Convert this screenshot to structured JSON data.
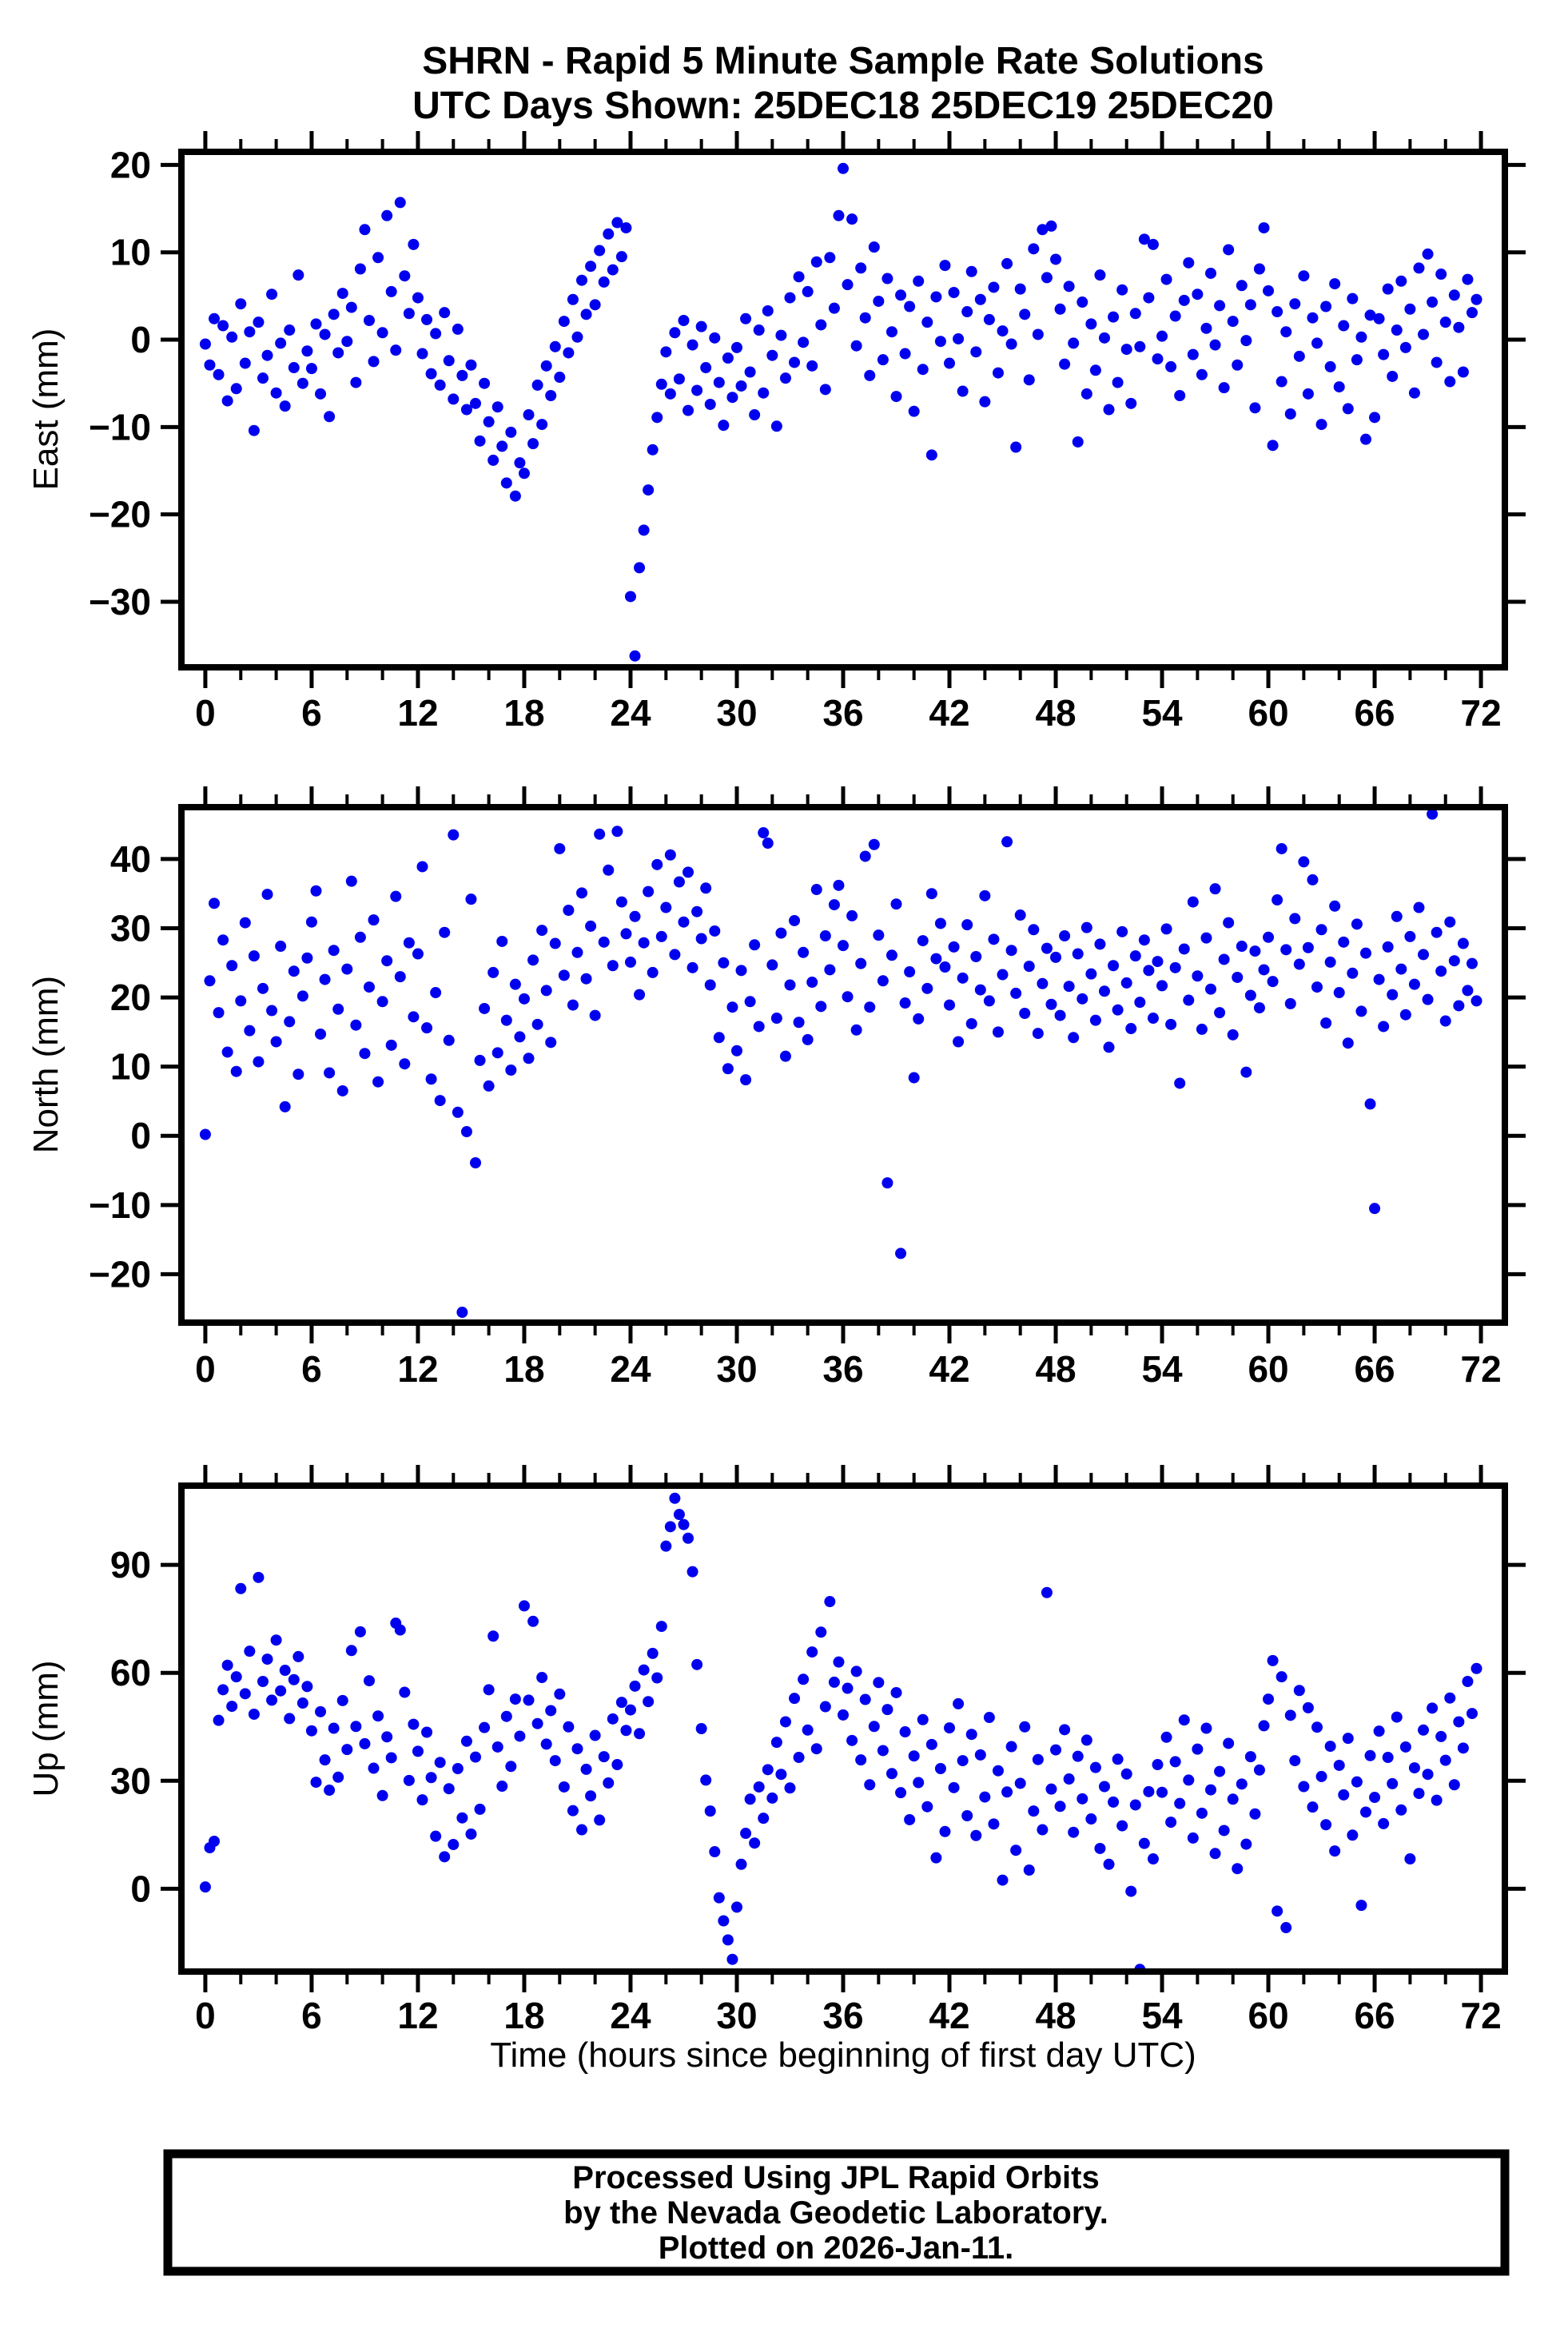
{
  "title": {
    "line1": "SHRN - Rapid 5 Minute Sample Rate Solutions",
    "line2": "UTC Days Shown:  25DEC18 25DEC19 25DEC20"
  },
  "footer": {
    "line1": "Processed Using JPL Rapid Orbits",
    "line2": "by the Nevada Geodetic Laboratory.",
    "line3": "Plotted on 2026-Jan-11."
  },
  "colors": {
    "dot": "#0000EE",
    "frame": "#000000"
  },
  "x_axis": {
    "label": "Time (hours since beginning of first day UTC)",
    "ticks": [
      0,
      6,
      12,
      18,
      24,
      30,
      36,
      42,
      48,
      54,
      60,
      66,
      72
    ],
    "minor_step": 2,
    "xlim": [
      -1.35,
      73.35
    ]
  },
  "chart_data": [
    {
      "type": "scatter",
      "id": "east",
      "name": "East",
      "ylabel": "East (mm)",
      "ylim": [
        -37.5,
        21.5
      ],
      "yticks": [
        20,
        10,
        0,
        -10,
        -20,
        -30
      ],
      "grid": false,
      "legend": "none",
      "marker": "circle",
      "t0": 0,
      "dt": 0.25,
      "y": [
        -0.5,
        -2.9,
        2.4,
        -4.0,
        1.6,
        -7.0,
        0.3,
        -5.6,
        4.1,
        -2.7,
        0.9,
        -10.4,
        2.0,
        -4.4,
        -1.8,
        5.2,
        -6.1,
        -0.4,
        -7.6,
        1.1,
        -3.2,
        7.4,
        -5.0,
        -1.3,
        -3.3,
        1.8,
        -6.2,
        0.6,
        -8.8,
        2.9,
        -1.5,
        5.3,
        -0.2,
        3.7,
        -4.9,
        8.1,
        12.6,
        2.2,
        -2.5,
        9.4,
        0.8,
        14.2,
        5.5,
        -1.2,
        15.7,
        7.3,
        3.0,
        10.9,
        4.8,
        -1.6,
        2.3,
        -3.9,
        0.7,
        -5.2,
        3.1,
        -2.4,
        -6.8,
        1.2,
        -4.1,
        -8.0,
        -2.9,
        -7.3,
        -11.6,
        -5.0,
        -9.4,
        -13.8,
        -7.7,
        -12.2,
        -16.4,
        -10.6,
        -17.9,
        -14.1,
        -15.3,
        -8.6,
        -11.9,
        -5.2,
        -9.7,
        -3.0,
        -6.4,
        -0.8,
        -4.3,
        2.1,
        -1.5,
        4.6,
        0.3,
        6.8,
        2.9,
        8.4,
        4.0,
        10.2,
        6.6,
        12.1,
        8.0,
        13.4,
        9.5,
        12.8,
        -29.4,
        -36.2,
        -26.1,
        -21.8,
        -17.2,
        -12.6,
        -8.9,
        -5.1,
        -1.4,
        -6.2,
        0.8,
        -4.5,
        2.2,
        -8.1,
        -0.6,
        -5.8,
        1.5,
        -3.2,
        -7.4,
        0.2,
        -4.9,
        -9.8,
        -2.1,
        -6.6,
        -0.9,
        -5.3,
        2.4,
        -3.7,
        -8.6,
        1.1,
        -6.1,
        3.3,
        -1.8,
        -9.9,
        0.5,
        -4.4,
        4.8,
        -2.6,
        7.2,
        -0.3,
        5.5,
        -3.0,
        8.9,
        1.7,
        -5.7,
        9.4,
        3.6,
        14.2,
        19.6,
        6.3,
        13.8,
        -0.7,
        8.2,
        2.5,
        -4.1,
        10.6,
        4.4,
        -2.3,
        7.0,
        0.9,
        -6.5,
        5.1,
        -1.6,
        3.8,
        -8.2,
        6.7,
        -3.4,
        2.0,
        -13.2,
        4.9,
        -0.2,
        8.5,
        -2.7,
        5.4,
        0.1,
        -5.9,
        3.2,
        7.8,
        -1.4,
        4.6,
        -7.1,
        2.3,
        6.0,
        -3.8,
        1.0,
        8.7,
        -0.5,
        -12.3,
        5.8,
        2.9,
        -4.6,
        10.4,
        0.6,
        12.6,
        7.1,
        13.0,
        9.2,
        3.5,
        -2.8,
        6.1,
        -0.4,
        -11.7,
        4.3,
        -6.2,
        1.8,
        -3.5,
        7.4,
        0.2,
        -8.0,
        2.6,
        -4.9,
        5.7,
        -1.1,
        -7.3,
        3.0,
        -0.8,
        11.5,
        4.8,
        10.9,
        -2.2,
        0.4,
        6.9,
        -3.1,
        2.7,
        -6.4,
        4.5,
        8.8,
        -1.7,
        5.2,
        -4.0,
        1.3,
        7.6,
        -0.6,
        3.9,
        -5.5,
        10.3,
        2.1,
        -2.9,
        6.2,
        -0.1,
        4.0,
        -7.8,
        8.1,
        12.8,
        5.6,
        -12.1,
        3.2,
        -4.8,
        0.9,
        -8.5,
        4.1,
        -1.9,
        7.3,
        -6.2,
        2.5,
        -0.4,
        -9.7,
        3.8,
        -3.1,
        6.4,
        -5.4,
        1.6,
        -7.9,
        4.7,
        -2.3,
        0.3,
        -11.4,
        2.8,
        -8.9,
        2.4,
        -1.7,
        5.8,
        -4.2,
        1.1,
        6.7,
        -0.9,
        3.5,
        -6.1,
        8.2,
        0.6,
        9.8,
        4.3,
        -2.6,
        7.5,
        2.0,
        -4.8,
        5.1,
        1.4,
        -3.7,
        6.9,
        3.1,
        4.6
      ]
    },
    {
      "type": "scatter",
      "id": "north",
      "name": "North",
      "ylabel": "North (mm)",
      "ylim": [
        -27,
        47.5
      ],
      "yticks": [
        40,
        30,
        20,
        10,
        0,
        -10,
        -20
      ],
      "grid": false,
      "legend": "none",
      "marker": "circle",
      "t0": 0,
      "dt": 0.25,
      "y": [
        0.2,
        22.4,
        33.6,
        17.8,
        28.3,
        12.1,
        24.6,
        9.3,
        19.5,
        30.8,
        15.2,
        26.0,
        10.7,
        21.3,
        34.9,
        18.1,
        13.6,
        27.4,
        4.2,
        16.5,
        23.8,
        8.9,
        20.2,
        25.7,
        30.9,
        35.4,
        14.7,
        22.6,
        9.1,
        26.8,
        18.3,
        6.5,
        24.1,
        36.8,
        16.0,
        28.7,
        11.9,
        21.5,
        31.2,
        7.8,
        19.4,
        25.3,
        13.1,
        34.6,
        23.0,
        10.4,
        27.9,
        17.2,
        26.3,
        38.9,
        15.6,
        8.2,
        20.7,
        5.1,
        29.4,
        13.8,
        43.5,
        3.4,
        -25.5,
        0.6,
        34.2,
        -3.9,
        10.9,
        18.4,
        7.2,
        23.6,
        12.0,
        28.1,
        16.7,
        9.5,
        21.9,
        14.3,
        19.8,
        11.2,
        25.4,
        16.1,
        29.7,
        21.0,
        13.5,
        27.8,
        41.5,
        23.2,
        32.6,
        18.9,
        26.5,
        35.1,
        22.7,
        30.3,
        17.4,
        43.6,
        28.0,
        38.4,
        24.6,
        44.0,
        33.8,
        29.2,
        25.1,
        31.7,
        20.4,
        27.9,
        35.3,
        23.6,
        39.2,
        28.8,
        33.0,
        40.6,
        26.2,
        36.7,
        30.9,
        38.1,
        24.3,
        32.4,
        28.5,
        35.8,
        21.8,
        29.6,
        14.2,
        25.0,
        9.7,
        18.6,
        12.3,
        23.9,
        8.1,
        19.4,
        27.6,
        15.8,
        43.8,
        42.3,
        24.7,
        17.0,
        29.3,
        11.5,
        21.8,
        31.1,
        16.4,
        26.5,
        13.9,
        22.2,
        35.6,
        18.7,
        28.9,
        24.0,
        33.4,
        36.2,
        27.5,
        20.1,
        31.8,
        15.3,
        24.9,
        40.4,
        18.6,
        42.1,
        29.0,
        22.4,
        -6.8,
        26.1,
        33.5,
        -17.0,
        19.2,
        23.7,
        8.4,
        16.9,
        28.2,
        21.3,
        35.0,
        25.6,
        30.7,
        24.4,
        18.9,
        27.3,
        13.6,
        22.8,
        30.5,
        16.2,
        25.9,
        21.1,
        34.7,
        19.5,
        28.4,
        15.0,
        23.3,
        42.5,
        26.8,
        20.6,
        31.9,
        17.7,
        24.5,
        29.8,
        14.8,
        22.0,
        27.1,
        19.0,
        25.8,
        17.4,
        28.9,
        21.6,
        14.2,
        26.3,
        19.8,
        30.1,
        23.4,
        16.7,
        27.7,
        20.9,
        12.8,
        24.6,
        18.2,
        29.5,
        22.1,
        15.5,
        26.0,
        19.3,
        28.3,
        23.9,
        17.0,
        25.2,
        21.7,
        29.9,
        16.1,
        24.3,
        7.6,
        27.0,
        19.6,
        33.8,
        23.1,
        15.4,
        28.6,
        21.2,
        35.7,
        17.8,
        25.5,
        30.8,
        14.6,
        22.9,
        27.4,
        9.2,
        20.3,
        26.7,
        18.5,
        24.0,
        28.7,
        22.3,
        34.1,
        41.5,
        26.9,
        19.1,
        31.4,
        24.8,
        39.6,
        27.2,
        37.0,
        21.5,
        29.8,
        16.3,
        25.1,
        33.2,
        20.7,
        28.0,
        13.4,
        23.5,
        30.6,
        18.0,
        26.4,
        4.6,
        -10.5,
        22.6,
        15.8,
        27.3,
        20.4,
        31.7,
        24.1,
        17.5,
        28.8,
        21.9,
        33.0,
        26.2,
        19.7,
        46.5,
        29.4,
        23.8,
        16.6,
        30.9,
        25.3,
        18.8,
        27.8,
        21.0,
        24.9,
        19.5
      ]
    },
    {
      "type": "scatter",
      "id": "up",
      "name": "Up",
      "ylabel": "Up (mm)",
      "ylim": [
        -23,
        112
      ],
      "yticks": [
        90,
        60,
        30,
        0
      ],
      "grid": false,
      "legend": "none",
      "marker": "circle",
      "t0": 0,
      "dt": 0.25,
      "y": [
        0.5,
        11.4,
        13.2,
        46.8,
        55.3,
        62.1,
        50.7,
        58.9,
        83.4,
        54.2,
        66.0,
        48.5,
        86.5,
        57.6,
        63.8,
        52.4,
        69.1,
        55.0,
        60.7,
        47.3,
        58.1,
        64.5,
        51.6,
        56.2,
        43.9,
        29.6,
        49.2,
        35.8,
        27.4,
        44.6,
        31.0,
        52.3,
        38.7,
        66.2,
        45.1,
        71.4,
        40.3,
        57.8,
        33.5,
        48.0,
        25.9,
        42.2,
        36.4,
        73.8,
        71.9,
        54.6,
        30.1,
        45.7,
        38.2,
        24.7,
        43.5,
        30.9,
        14.6,
        35.1,
        8.9,
        27.8,
        12.3,
        33.4,
        19.7,
        41.0,
        15.2,
        36.6,
        22.1,
        44.8,
        55.3,
        70.2,
        39.4,
        28.5,
        47.9,
        34.0,
        52.7,
        42.4,
        78.6,
        52.4,
        74.3,
        45.9,
        58.7,
        40.2,
        49.5,
        35.6,
        54.1,
        28.3,
        45.0,
        21.7,
        38.9,
        16.4,
        33.2,
        25.8,
        42.6,
        19.1,
        36.7,
        29.4,
        47.2,
        34.5,
        51.8,
        44.0,
        49.7,
        56.3,
        43.1,
        60.8,
        52.0,
        65.4,
        58.6,
        72.9,
        95.2,
        100.6,
        108.5,
        104.0,
        101.2,
        97.4,
        88.1,
        62.3,
        44.5,
        30.2,
        21.6,
        10.3,
        -2.5,
        -8.9,
        -14.2,
        -19.6,
        -5.1,
        6.8,
        15.4,
        24.9,
        12.7,
        28.3,
        19.6,
        33.1,
        25.2,
        40.7,
        31.8,
        46.4,
        28.0,
        52.9,
        36.5,
        58.2,
        44.1,
        65.8,
        38.9,
        71.3,
        50.6,
        79.8,
        57.4,
        63.0,
        48.3,
        55.7,
        41.2,
        60.4,
        35.8,
        52.6,
        28.9,
        45.1,
        57.3,
        38.4,
        49.8,
        32.0,
        54.5,
        26.7,
        43.6,
        19.2,
        36.9,
        29.5,
        47.0,
        22.8,
        40.1,
        8.6,
        33.4,
        15.9,
        44.7,
        28.1,
        51.4,
        35.6,
        20.3,
        42.9,
        14.8,
        37.2,
        25.5,
        47.6,
        18.0,
        32.8,
        2.4,
        26.9,
        39.5,
        10.7,
        29.3,
        45.0,
        5.2,
        21.6,
        35.9,
        16.4,
        82.3,
        27.7,
        38.6,
        22.9,
        44.2,
        30.5,
        15.7,
        36.8,
        25.0,
        41.3,
        19.4,
        33.7,
        11.2,
        28.4,
        6.8,
        24.1,
        36.0,
        17.5,
        31.9,
        -0.7,
        23.3,
        -22.4,
        12.6,
        27.0,
        8.3,
        34.5,
        26.8,
        42.1,
        18.5,
        35.3,
        23.7,
        46.9,
        30.2,
        14.1,
        38.8,
        21.0,
        44.6,
        27.5,
        9.8,
        32.6,
        16.2,
        40.4,
        24.9,
        5.6,
        29.1,
        12.4,
        36.7,
        20.8,
        33.0,
        45.3,
        52.7,
        63.4,
        -6.2,
        58.9,
        -10.8,
        48.2,
        35.6,
        55.1,
        28.4,
        50.3,
        22.7,
        44.9,
        31.2,
        17.8,
        39.6,
        10.5,
        34.3,
        26.1,
        41.8,
        14.9,
        29.7,
        -4.6,
        21.3,
        37.0,
        25.4,
        43.8,
        18.1,
        36.5,
        29.2,
        47.7,
        21.9,
        39.4,
        8.3,
        33.6,
        26.5,
        44.1,
        31.8,
        50.2,
        24.6,
        42.3,
        35.7,
        53.0,
        28.9,
        46.4,
        39.1,
        57.6,
        48.7,
        61.2
      ]
    }
  ]
}
